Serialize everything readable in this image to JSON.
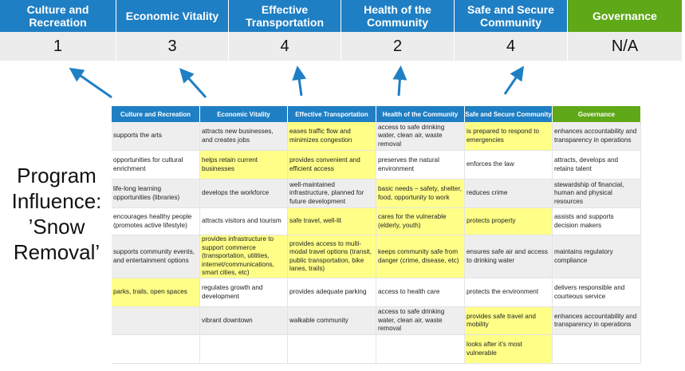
{
  "categories": [
    {
      "label": "Culture and Recreation",
      "score": "1",
      "color": "#1f7fc4"
    },
    {
      "label": "Economic Vitality",
      "score": "3",
      "color": "#1f7fc4"
    },
    {
      "label": "Effective Transportation",
      "score": "4",
      "color": "#1f7fc4"
    },
    {
      "label": "Health of the Community",
      "score": "2",
      "color": "#1f7fc4"
    },
    {
      "label": "Safe and Secure Community",
      "score": "4",
      "color": "#1f7fc4"
    },
    {
      "label": "Governance",
      "score": "N/A",
      "color": "#5fa818"
    }
  ],
  "title": "Program Influence: ’Snow Removal’",
  "highlight_color": "#ffff88",
  "table": {
    "headers": [
      "Culture and Recreation",
      "Economic Vitality",
      "Effective Transportation",
      "Health of the Community",
      "Safe and Secure Community",
      "Governance"
    ],
    "rows": [
      [
        {
          "t": "supports the arts"
        },
        {
          "t": "attracts new businesses, and creates jobs"
        },
        {
          "t": "eases traffic flow and minimizes congestion",
          "hl": true
        },
        {
          "t": "access to safe drinking water, clean air, waste removal"
        },
        {
          "t": "is prepared to respond to emergencies",
          "hl": true
        },
        {
          "t": "enhances accountability and transparency in operations"
        }
      ],
      [
        {
          "t": "opportunities for cultural enrichment"
        },
        {
          "t": "helps retain current businesses",
          "hl": true
        },
        {
          "t": "provides convenient and efficient access",
          "hl": true
        },
        {
          "t": "preserves the natural environment"
        },
        {
          "t": "enforces the law"
        },
        {
          "t": "attracts, develops and retains talent"
        }
      ],
      [
        {
          "t": "life-long learning opportunities (libraries)"
        },
        {
          "t": "develops the workforce"
        },
        {
          "t": "well-maintained infrastructure, planned for future development"
        },
        {
          "t": "basic needs – safety, shelter, food, opportunity to work",
          "hl": true
        },
        {
          "t": "reduces crime"
        },
        {
          "t": "stewardship of financial, human and physical resources"
        }
      ],
      [
        {
          "t": "encourages healthy people (promotes active lifestyle)"
        },
        {
          "t": "attracts visitors and tourism"
        },
        {
          "t": "safe travel, well-lit",
          "hl": true
        },
        {
          "t": "cares for the vulnerable (elderly, youth)",
          "hl": true
        },
        {
          "t": "protects property",
          "hl": true
        },
        {
          "t": "assists and supports decision makers"
        }
      ],
      [
        {
          "t": "supports community events, and entertainment options"
        },
        {
          "t": "provides infrastructure to support commerce (transportation, utilities, internet/communications, smart cities, etc)",
          "hl": true
        },
        {
          "t": "provides access to multi-modal travel options (transit, public transportation, bike lanes, trails)",
          "hl": true
        },
        {
          "t": "keeps community safe from danger (crime, disease, etc)",
          "hl": true
        },
        {
          "t": "ensures safe air and access to drinking water"
        },
        {
          "t": "maintains regulatory compliance"
        }
      ],
      [
        {
          "t": "parks, trails, open spaces",
          "hl": true
        },
        {
          "t": "regulates growth and development"
        },
        {
          "t": "provides adequate parking"
        },
        {
          "t": "access to health care"
        },
        {
          "t": "protects the environment"
        },
        {
          "t": "delivers responsible and courteous service"
        }
      ],
      [
        {
          "t": ""
        },
        {
          "t": "vibrant downtown"
        },
        {
          "t": "walkable community"
        },
        {
          "t": "access to safe drinking water, clean air, waste removal"
        },
        {
          "t": "provides safe travel and mobility",
          "hl": true
        },
        {
          "t": "enhances accountability and transparency in operations"
        }
      ],
      [
        {
          "t": ""
        },
        {
          "t": ""
        },
        {
          "t": ""
        },
        {
          "t": ""
        },
        {
          "t": "looks after it’s most vulnerable",
          "hl": true
        },
        {
          "t": ""
        }
      ]
    ]
  }
}
